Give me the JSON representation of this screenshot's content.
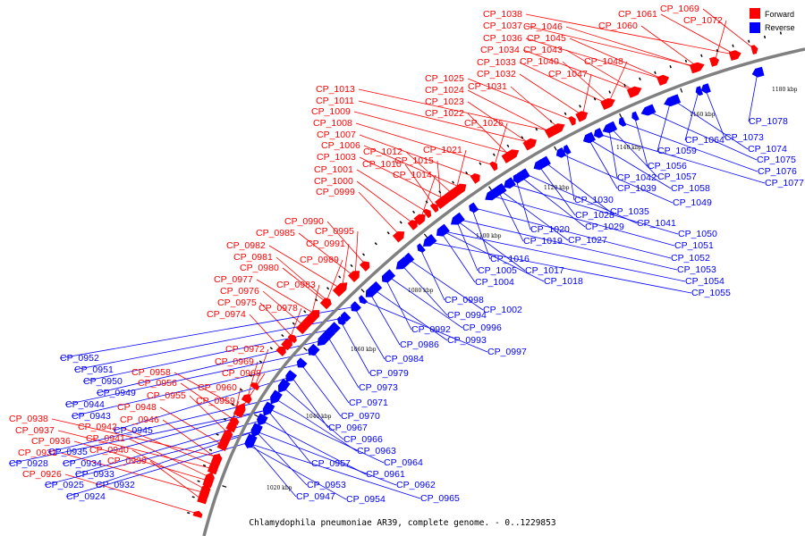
{
  "title": "Chlamydophila pneumoniae AR39, complete genome. - 0..1229853",
  "legend": [
    {
      "label": "Forward",
      "color": "#ff0000"
    },
    {
      "label": "Reverse",
      "color": "#0000ff"
    }
  ],
  "colors": {
    "forward": "#ff0000",
    "reverse": "#0000ff",
    "backbone": "#808080"
  },
  "ticks": [
    "1020 kbp",
    "1040 kbp",
    "1060 kbp",
    "1080 kbp",
    "1100 kbp",
    "1120 kbp",
    "1140 kbp",
    "1160 kbp",
    "1180 kbp"
  ],
  "forward_labels": [
    "CP_0938",
    "CP_0937",
    "CP_0936",
    "CP_0931",
    "CP_0926",
    "CP_0942",
    "CP_0941",
    "CP_0940",
    "CP_0939",
    "CP_0948",
    "CP_0946",
    "CP_0958",
    "CP_0956",
    "CP_0955",
    "CP_0960",
    "CP_0959",
    "CP_0972",
    "CP_0969",
    "CP_0968",
    "CP_0982",
    "CP_0981",
    "CP_0980",
    "CP_0977",
    "CP_0976",
    "CP_0975",
    "CP_0974",
    "CP_0978",
    "CP_0983",
    "CP_0985",
    "CP_0990",
    "CP_0995",
    "CP_0991",
    "CP_0989",
    "CP_1013",
    "CP_1011",
    "CP_1009",
    "CP_1008",
    "CP_1007",
    "CP_1006",
    "CP_1003",
    "CP_1001",
    "CP_1000",
    "CP_0999",
    "CP_1012",
    "CP_1010",
    "CP_1015",
    "CP_1014",
    "CP_1021",
    "CP_1025",
    "CP_1024",
    "CP_1023",
    "CP_1022",
    "CP_1026",
    "CP_1033",
    "CP_1032",
    "CP_1031",
    "CP_1038",
    "CP_1037",
    "CP_1036",
    "CP_1034",
    "CP_1046",
    "CP_1045",
    "CP_1043",
    "CP_1040",
    "CP_1047",
    "CP_1048",
    "CP_1061",
    "CP_1060",
    "CP_1069",
    "CP_1072"
  ],
  "reverse_labels": [
    "CP_0952",
    "CP_0951",
    "CP_0950",
    "CP_0949",
    "CP_0944",
    "CP_0943",
    "CP_0945",
    "CP_0935",
    "CP_0934",
    "CP_0933",
    "CP_0932",
    "CP_0928",
    "CP_0925",
    "CP_0924",
    "CP_0953",
    "CP_0947",
    "CP_0954",
    "CP_0957",
    "CP_0961",
    "CP_0962",
    "CP_0965",
    "CP_0964",
    "CP_0963",
    "CP_0966",
    "CP_0967",
    "CP_0970",
    "CP_0971",
    "CP_0973",
    "CP_0979",
    "CP_0984",
    "CP_0986",
    "CP_0993",
    "CP_0997",
    "CP_0992",
    "CP_0996",
    "CP_0994",
    "CP_0998",
    "CP_1002",
    "CP_1004",
    "CP_1005",
    "CP_1016",
    "CP_1017",
    "CP_1018",
    "CP_1019",
    "CP_1020",
    "CP_1027",
    "CP_1028",
    "CP_1029",
    "CP_1030",
    "CP_1035",
    "CP_1039",
    "CP_1042",
    "CP_1041",
    "CP_1049",
    "CP_1050",
    "CP_1051",
    "CP_1052",
    "CP_1053",
    "CP_1054",
    "CP_1055",
    "CP_1056",
    "CP_1057",
    "CP_1058",
    "CP_1059",
    "CP_1064",
    "CP_1073",
    "CP_1074",
    "CP_1075",
    "CP_1076",
    "CP_1077",
    "CP_1078"
  ]
}
